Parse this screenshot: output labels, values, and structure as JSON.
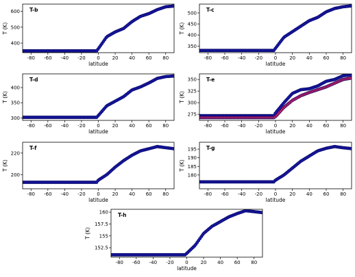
{
  "colors": {
    "points": "#1a1aa6",
    "edge": "#000060",
    "accent": "#cc2266"
  },
  "chart_data": [
    {
      "type": "scatter",
      "title": "T-b",
      "xlabel": "latitude",
      "ylabel": "T (K)",
      "xlim": [
        -90,
        90
      ],
      "ylim": [
        340,
        645
      ],
      "yticks": [
        400,
        500,
        600
      ],
      "xticks": [
        -80,
        -60,
        -40,
        -20,
        0,
        20,
        40,
        60,
        80
      ],
      "series": [
        {
          "values": [
            [
              -90,
              351
            ],
            [
              -2,
              351
            ],
            [
              0,
              365
            ],
            [
              10,
              440
            ],
            [
              20,
              470
            ],
            [
              30,
              492
            ],
            [
              40,
              535
            ],
            [
              50,
              568
            ],
            [
              60,
              585
            ],
            [
              70,
              610
            ],
            [
              80,
              628
            ],
            [
              90,
              633
            ]
          ]
        }
      ]
    },
    {
      "type": "scatter",
      "title": "T-c",
      "xlabel": "latitude",
      "ylabel": "T (K)",
      "xlim": [
        -90,
        90
      ],
      "ylim": [
        320,
        540
      ],
      "yticks": [
        350,
        400,
        450,
        500
      ],
      "xticks": [
        -80,
        -60,
        -40,
        -20,
        0,
        20,
        40,
        60,
        80
      ],
      "series": [
        {
          "values": [
            [
              -90,
              330
            ],
            [
              -2,
              330
            ],
            [
              0,
              340
            ],
            [
              10,
              390
            ],
            [
              20,
              415
            ],
            [
              30,
              440
            ],
            [
              40,
              465
            ],
            [
              50,
              480
            ],
            [
              60,
              505
            ],
            [
              70,
              520
            ],
            [
              80,
              528
            ],
            [
              90,
              532
            ]
          ]
        }
      ]
    },
    {
      "type": "scatter",
      "title": "T-d",
      "xlabel": "latitude",
      "ylabel": "T (K)",
      "xlim": [
        -90,
        90
      ],
      "ylim": [
        292,
        445
      ],
      "yticks": [
        300,
        350,
        400
      ],
      "xticks": [
        -80,
        -60,
        -40,
        -20,
        0,
        20,
        40,
        60,
        80
      ],
      "series": [
        {
          "values": [
            [
              -90,
              302
            ],
            [
              -2,
              302
            ],
            [
              0,
              308
            ],
            [
              10,
              340
            ],
            [
              20,
              355
            ],
            [
              30,
              370
            ],
            [
              40,
              392
            ],
            [
              50,
              402
            ],
            [
              60,
              415
            ],
            [
              70,
              430
            ],
            [
              80,
              436
            ],
            [
              90,
              438
            ]
          ]
        }
      ]
    },
    {
      "type": "scatter",
      "title": "T-e",
      "xlabel": "latitude",
      "ylabel": "T (K)",
      "xlim": [
        -90,
        90
      ],
      "ylim": [
        262,
        362
      ],
      "yticks": [
        275,
        300,
        325,
        350
      ],
      "xticks": [
        -80,
        -60,
        -40,
        -20,
        0,
        20,
        40,
        60,
        80
      ],
      "series": [
        {
          "values": [
            [
              -90,
              272
            ],
            [
              -2,
              272
            ],
            [
              0,
              278
            ],
            [
              10,
              300
            ],
            [
              20,
              320
            ],
            [
              30,
              328
            ],
            [
              40,
              330
            ],
            [
              50,
              336
            ],
            [
              60,
              346
            ],
            [
              70,
              350
            ],
            [
              80,
              358
            ],
            [
              90,
              360
            ]
          ]
        },
        {
          "values": [
            [
              -90,
              268
            ],
            [
              -2,
              268
            ],
            [
              0,
              270
            ],
            [
              10,
              290
            ],
            [
              20,
              305
            ],
            [
              30,
              315
            ],
            [
              40,
              322
            ],
            [
              50,
              328
            ],
            [
              60,
              334
            ],
            [
              70,
              342
            ],
            [
              80,
              350
            ],
            [
              90,
              353
            ]
          ]
        }
      ]
    },
    {
      "type": "scatter",
      "title": "T-f",
      "xlabel": "latitude",
      "ylabel": "T (K)",
      "xlim": [
        -90,
        90
      ],
      "ylim": [
        187,
        230
      ],
      "yticks": [
        200,
        220
      ],
      "xticks": [
        -80,
        -60,
        -40,
        -20,
        0,
        20,
        40,
        60,
        80
      ],
      "series": [
        {
          "values": [
            [
              -90,
              193
            ],
            [
              -2,
              193
            ],
            [
              0,
              195
            ],
            [
              10,
              200
            ],
            [
              20,
              207
            ],
            [
              30,
              213
            ],
            [
              40,
              218
            ],
            [
              50,
              222
            ],
            [
              60,
              224
            ],
            [
              70,
              226
            ],
            [
              80,
              225
            ],
            [
              90,
              224
            ]
          ]
        }
      ]
    },
    {
      "type": "scatter",
      "title": "T-g",
      "xlabel": "latitude",
      "ylabel": "T (K)",
      "xlim": [
        -90,
        90
      ],
      "ylim": [
        172,
        199
      ],
      "yticks": [
        180,
        185,
        190,
        195
      ],
      "xticks": [
        -80,
        -60,
        -40,
        -20,
        0,
        20,
        40,
        60,
        80
      ],
      "series": [
        {
          "values": [
            [
              -90,
              176
            ],
            [
              -2,
              176
            ],
            [
              0,
              177
            ],
            [
              10,
              180
            ],
            [
              20,
              184
            ],
            [
              30,
              188
            ],
            [
              40,
              191
            ],
            [
              50,
              194
            ],
            [
              60,
              195.5
            ],
            [
              70,
              196.5
            ],
            [
              80,
              195.8
            ],
            [
              90,
              195.3
            ]
          ]
        }
      ]
    },
    {
      "type": "scatter",
      "title": "T-h",
      "xlabel": "latitude",
      "ylabel": "T (K)",
      "xlim": [
        -90,
        90
      ],
      "ylim": [
        150.5,
        160.6
      ],
      "yticks": [
        152.5,
        155.0,
        157.5,
        160.0
      ],
      "xticks": [
        -80,
        -60,
        -40,
        -20,
        0,
        20,
        40,
        60,
        80
      ],
      "series": [
        {
          "values": [
            [
              -90,
              151
            ],
            [
              -2,
              151
            ],
            [
              0,
              151.3
            ],
            [
              10,
              153
            ],
            [
              20,
              155.5
            ],
            [
              30,
              157
            ],
            [
              40,
              158
            ],
            [
              50,
              159
            ],
            [
              60,
              159.7
            ],
            [
              70,
              160.3
            ],
            [
              80,
              160.1
            ],
            [
              90,
              159.9
            ]
          ]
        }
      ]
    }
  ]
}
